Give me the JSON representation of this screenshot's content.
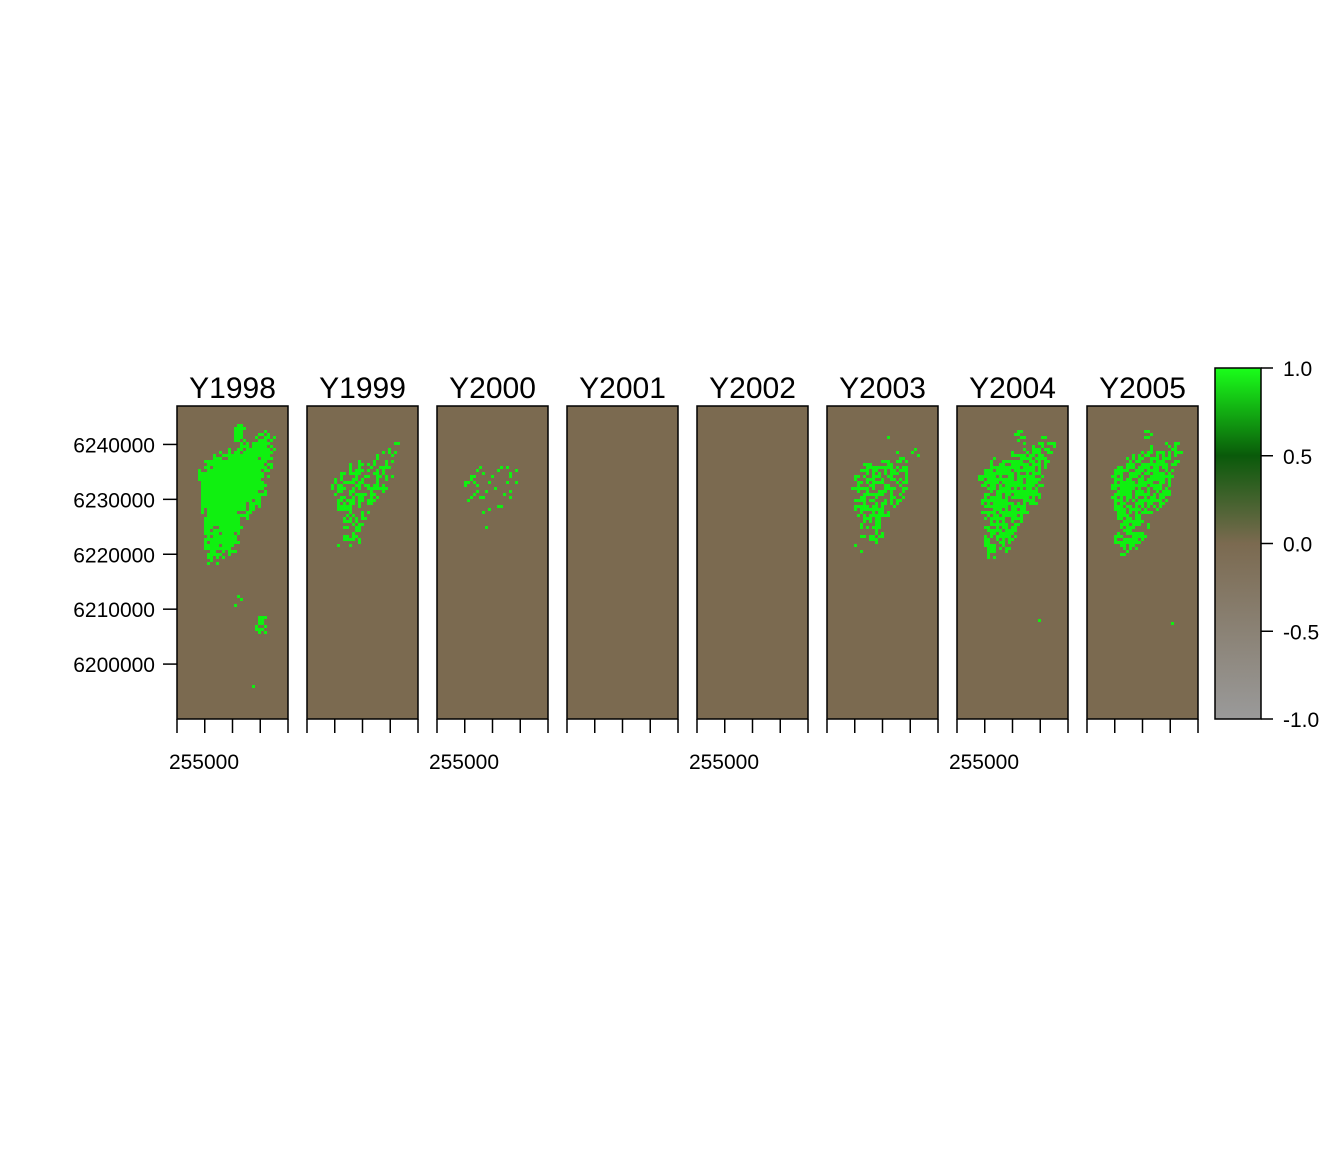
{
  "chart_data": {
    "type": "heatmap",
    "panels": [
      {
        "title": "Y1998",
        "coverage": 0.38
      },
      {
        "title": "Y1999",
        "coverage": 0.14
      },
      {
        "title": "Y2000",
        "coverage": 0.006
      },
      {
        "title": "Y2001",
        "coverage": 0.0
      },
      {
        "title": "Y2002",
        "coverage": 0.0
      },
      {
        "title": "Y2003",
        "coverage": 0.17
      },
      {
        "title": "Y2004",
        "coverage": 0.28
      },
      {
        "title": "Y2005",
        "coverage": 0.25
      }
    ],
    "y_ticks": [
      {
        "value": 6240000,
        "label": "6240000"
      },
      {
        "value": 6230000,
        "label": "6230000"
      },
      {
        "value": 6220000,
        "label": "6220000"
      },
      {
        "value": 6210000,
        "label": "6210000"
      },
      {
        "value": 6200000,
        "label": "6200000"
      }
    ],
    "ylim": [
      6190000,
      6247000
    ],
    "x_tick_label": "255000",
    "x_tick_label_panels": [
      0,
      2,
      4,
      6
    ],
    "x_minor_ticks_per_panel": 5,
    "legend": {
      "position": "right",
      "ticks": [
        {
          "value": 1.0,
          "label": "1.0"
        },
        {
          "value": 0.5,
          "label": "0.5"
        },
        {
          "value": 0.0,
          "label": "0.0"
        },
        {
          "value": -0.5,
          "label": "-0.5"
        },
        {
          "value": -1.0,
          "label": "-1.0"
        }
      ],
      "range": [
        -1.0,
        1.0
      ]
    },
    "colors": {
      "background": "#7b6a50",
      "vegetation": "#10f010",
      "legend_high": "#1aff1a",
      "legend_mid_high": "#0a5a0a",
      "legend_zero": "#7b6a50",
      "legend_low": "#9a9a9a"
    }
  }
}
